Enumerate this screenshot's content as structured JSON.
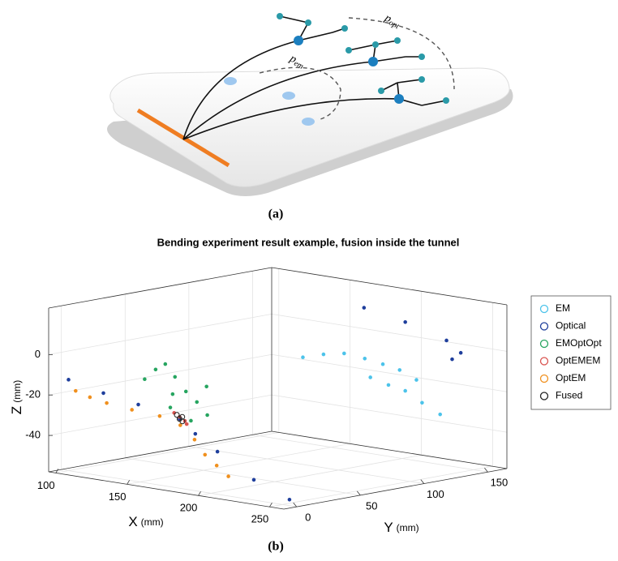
{
  "figure_a": {
    "caption": "(a)",
    "labels": [
      {
        "symbol": "p",
        "subscript": "opt"
      },
      {
        "symbol": "p",
        "subscript": "em"
      }
    ]
  },
  "chart_data": {
    "type": "scatter3d",
    "title": "Bending experiment result example, fusion inside the tunnel",
    "xlabel": "X",
    "ylabel": "Y",
    "zlabel": "Z",
    "xunit": "(mm)",
    "yunit": "(mm)",
    "zunit": "(mm)",
    "xlim": [
      95,
      260
    ],
    "ylim": [
      -10,
      165
    ],
    "zlim": [
      -58,
      23
    ],
    "xticks": [
      100,
      150,
      200,
      250
    ],
    "yticks": [
      0,
      50,
      100,
      150
    ],
    "zticks": [
      -40,
      -20,
      0
    ],
    "grid": true,
    "legend": "right",
    "series": [
      {
        "name": "EM",
        "color": "#4cc3ea",
        "x": [
          175,
          185,
          195,
          205,
          215,
          225,
          235,
          200,
          210,
          220,
          230,
          240
        ],
        "y": [
          100,
          105,
          110,
          115,
          118,
          120,
          122,
          125,
          128,
          130,
          132,
          135
        ],
        "z": [
          -5,
          -3,
          -2,
          -4,
          -6,
          -8,
          -12,
          -15,
          -18,
          -20,
          -25,
          -30
        ]
      },
      {
        "name": "Optical",
        "color": "#1f3f9c",
        "x": [
          100,
          120,
          140,
          160,
          180,
          200,
          230,
          255,
          200,
          220,
          240,
          250,
          235
        ],
        "y": [
          0,
          5,
          10,
          20,
          10,
          5,
          0,
          0,
          120,
          130,
          140,
          140,
          150
        ],
        "z": [
          -13,
          -18,
          -22,
          -28,
          -32,
          -38,
          -48,
          -55,
          20,
          14,
          6,
          1,
          -5
        ]
      },
      {
        "name": "EMOptOpt",
        "color": "#27a560",
        "x": [
          140,
          145,
          150,
          155,
          160,
          165,
          170,
          175,
          148,
          158,
          168
        ],
        "y": [
          15,
          18,
          20,
          22,
          25,
          28,
          30,
          25,
          28,
          15,
          20
        ],
        "z": [
          -10,
          -5,
          -2,
          -8,
          -15,
          -20,
          -12,
          -25,
          -18,
          -22,
          -28
        ]
      },
      {
        "name": "OptEMEM",
        "color": "#d9534f",
        "x": [
          158,
          160,
          162,
          165
        ],
        "y": [
          18,
          20,
          22,
          20
        ],
        "z": [
          -25,
          -27,
          -29,
          -30
        ]
      },
      {
        "name": "OptEM",
        "color": "#f0901e",
        "x": [
          105,
          115,
          125,
          140,
          155,
          165,
          175,
          185,
          195,
          205
        ],
        "y": [
          0,
          0,
          2,
          5,
          10,
          15,
          15,
          12,
          10,
          8
        ],
        "z": [
          -18,
          -20,
          -22,
          -24,
          -26,
          -30,
          -36,
          -42,
          -46,
          -50
        ]
      },
      {
        "name": "Fused",
        "color": "#222222",
        "x": [
          159,
          160,
          161,
          162
        ],
        "y": [
          19,
          20,
          21,
          20
        ],
        "z": [
          -26,
          -28,
          -27,
          -29
        ]
      }
    ]
  },
  "figure_b": {
    "caption": "(b)"
  }
}
